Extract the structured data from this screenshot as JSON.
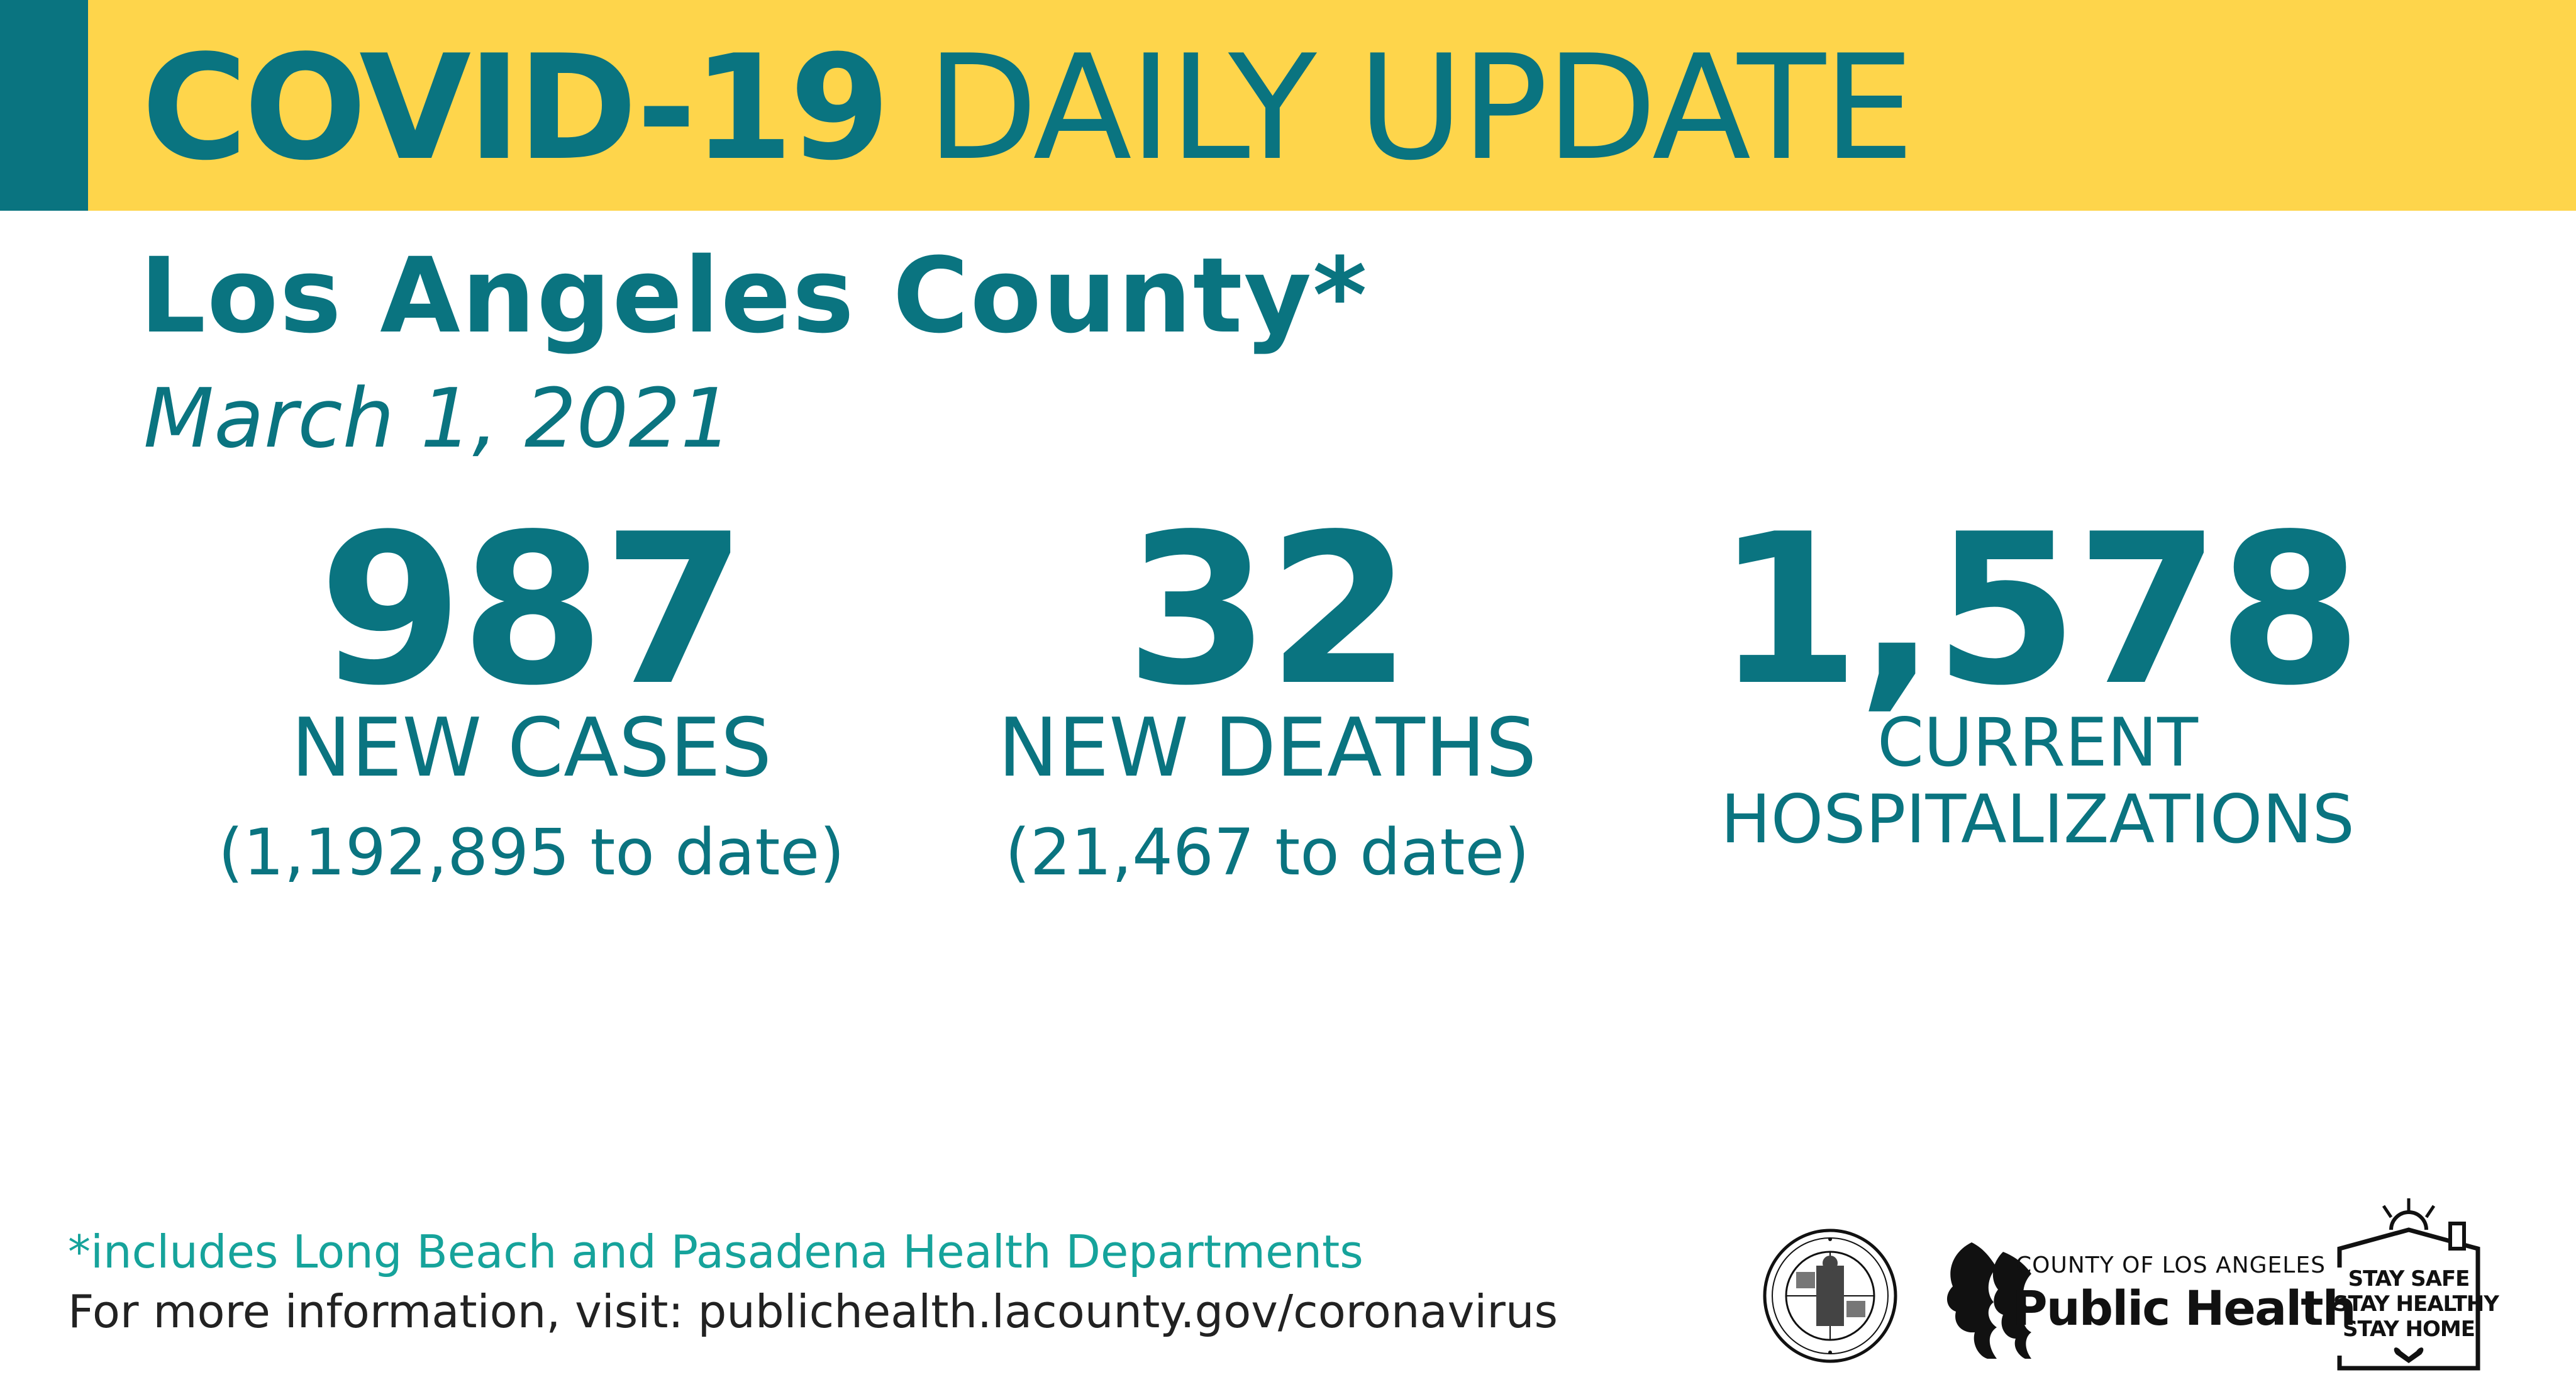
{
  "banner": {
    "title_bold": "COVID-19",
    "title_light": "DAILY UPDATE"
  },
  "header": {
    "county": "Los Angeles County*",
    "date": "March 1, 2021"
  },
  "stats": {
    "cases": {
      "value": "987",
      "label": "NEW CASES",
      "to_date": "(1,192,895 to date)"
    },
    "deaths": {
      "value": "32",
      "label": "NEW DEATHS",
      "to_date": "(21,467 to date)"
    },
    "hospitalizations": {
      "value": "1,578",
      "label_line1": "CURRENT",
      "label_line2": "HOSPITALIZATIONS"
    }
  },
  "footer": {
    "note": "*includes Long Beach and Pasadena Health Departments",
    "info": "For more information, visit: publichealth.lacounty.gov/coronavirus"
  },
  "logos": {
    "seal_icon": "county-seal-icon",
    "ph_small": "COUNTY OF LOS ANGELES",
    "ph_big": "Public Health",
    "stay_safe": [
      "STAY SAFE",
      "STAY HEALTHY",
      "STAY HOME"
    ]
  },
  "colors": {
    "teal": "#0a7480",
    "yellow": "#fed54b",
    "footnote": "#16a39b"
  }
}
